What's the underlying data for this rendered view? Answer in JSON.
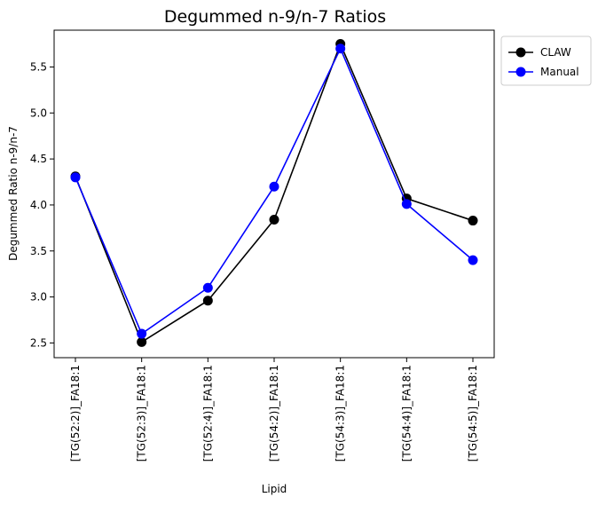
{
  "chart_data": {
    "type": "line",
    "title": "Degummed n-9/n-7 Ratios",
    "xlabel": "Lipid",
    "ylabel": "Degummed Ratio n-9/n-7",
    "categories": [
      "[TG(52:2)]_FA18:1",
      "[TG(52:3)]_FA18:1",
      "[TG(52:4)]_FA18:1",
      "[TG(54:2)]_FA18:1",
      "[TG(54:3)]_FA18:1",
      "[TG(54:4)]_FA18:1",
      "[TG(54:5)]_FA18:1"
    ],
    "ylim": [
      2.34,
      5.9
    ],
    "yticks": [
      "2.5",
      "3.0",
      "3.5",
      "4.0",
      "4.5",
      "5.0",
      "5.5"
    ],
    "grid": false,
    "legend_position": "upper-right-outside",
    "series": [
      {
        "name": "CLAW",
        "color": "#000000",
        "marker": "circle",
        "values": [
          4.31,
          2.51,
          2.96,
          3.84,
          5.75,
          4.07,
          3.83
        ]
      },
      {
        "name": "Manual",
        "color": "#0000ff",
        "marker": "circle",
        "values": [
          4.3,
          2.6,
          3.1,
          4.2,
          5.7,
          4.01,
          3.4
        ]
      }
    ]
  }
}
